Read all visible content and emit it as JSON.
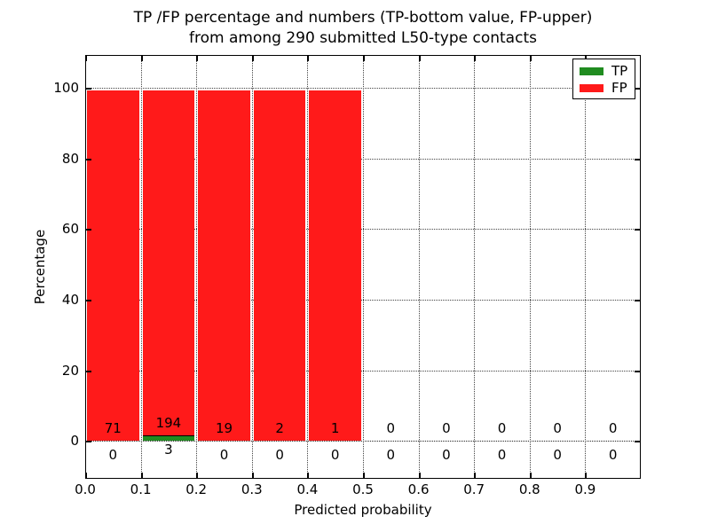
{
  "title": {
    "line1": "TP /FP percentage and numbers (TP-bottom value, FP-upper)",
    "line2": "from among 290 submitted L50-type contacts"
  },
  "axes": {
    "xlabel": "Predicted probability",
    "ylabel": "Percentage"
  },
  "legend": {
    "items": [
      {
        "label": "TP",
        "color": "#208c20"
      },
      {
        "label": "FP",
        "color": "#ff1a1a"
      }
    ]
  },
  "colors": {
    "tp": "#208c20",
    "fp": "#ff1a1a",
    "grid": "#444444",
    "frame": "#000000",
    "background": "#ffffff"
  },
  "chart_data": {
    "type": "bar",
    "stacked": true,
    "title": "TP /FP percentage and numbers (TP-bottom value, FP-upper) from among 290 submitted L50-type contacts",
    "xlabel": "Predicted probability",
    "ylabel": "Percentage",
    "total_submitted": 290,
    "bin_edges": [
      0.0,
      0.1,
      0.2,
      0.3,
      0.4,
      0.5,
      0.6,
      0.7,
      0.8,
      0.9,
      1.0
    ],
    "series": [
      {
        "name": "TP",
        "color": "#208c20",
        "counts": [
          0,
          3,
          0,
          0,
          0,
          0,
          0,
          0,
          0,
          0
        ]
      },
      {
        "name": "FP",
        "color": "#ff1a1a",
        "counts": [
          71,
          194,
          19,
          2,
          1,
          0,
          0,
          0,
          0,
          0
        ]
      }
    ],
    "percent_mode": "per-bin, TP+FP stacked to 100% for non-empty bins",
    "bars_percent": [
      {
        "bin": "0.0-0.1",
        "tp_pct": 0.0,
        "fp_pct": 100.0
      },
      {
        "bin": "0.1-0.2",
        "tp_pct": 1.52,
        "fp_pct": 98.48
      },
      {
        "bin": "0.2-0.3",
        "tp_pct": 0.0,
        "fp_pct": 100.0
      },
      {
        "bin": "0.3-0.4",
        "tp_pct": 0.0,
        "fp_pct": 100.0
      },
      {
        "bin": "0.4-0.5",
        "tp_pct": 0.0,
        "fp_pct": 100.0
      },
      {
        "bin": "0.5-0.6",
        "tp_pct": 0.0,
        "fp_pct": 0.0
      },
      {
        "bin": "0.6-0.7",
        "tp_pct": 0.0,
        "fp_pct": 0.0
      },
      {
        "bin": "0.7-0.8",
        "tp_pct": 0.0,
        "fp_pct": 0.0
      },
      {
        "bin": "0.8-0.9",
        "tp_pct": 0.0,
        "fp_pct": 0.0
      },
      {
        "bin": "0.9-1.0",
        "tp_pct": 0.0,
        "fp_pct": 0.0
      }
    ],
    "xlim": [
      0.0,
      1.0
    ],
    "ylim": [
      -10.8,
      109.4
    ],
    "x_tick_values": [
      0.0,
      0.1,
      0.2,
      0.3,
      0.4,
      0.5,
      0.6,
      0.7,
      0.8,
      0.9
    ],
    "x_tick_labels": [
      "0.0",
      "0.1",
      "0.2",
      "0.3",
      "0.4",
      "0.5",
      "0.6",
      "0.7",
      "0.8",
      "0.9"
    ],
    "y_tick_values": [
      0,
      20,
      40,
      60,
      80,
      100
    ],
    "y_tick_labels": [
      "0",
      "20",
      "40",
      "60",
      "80",
      "100"
    ],
    "grid": "dotted",
    "legend_position": "upper right"
  }
}
